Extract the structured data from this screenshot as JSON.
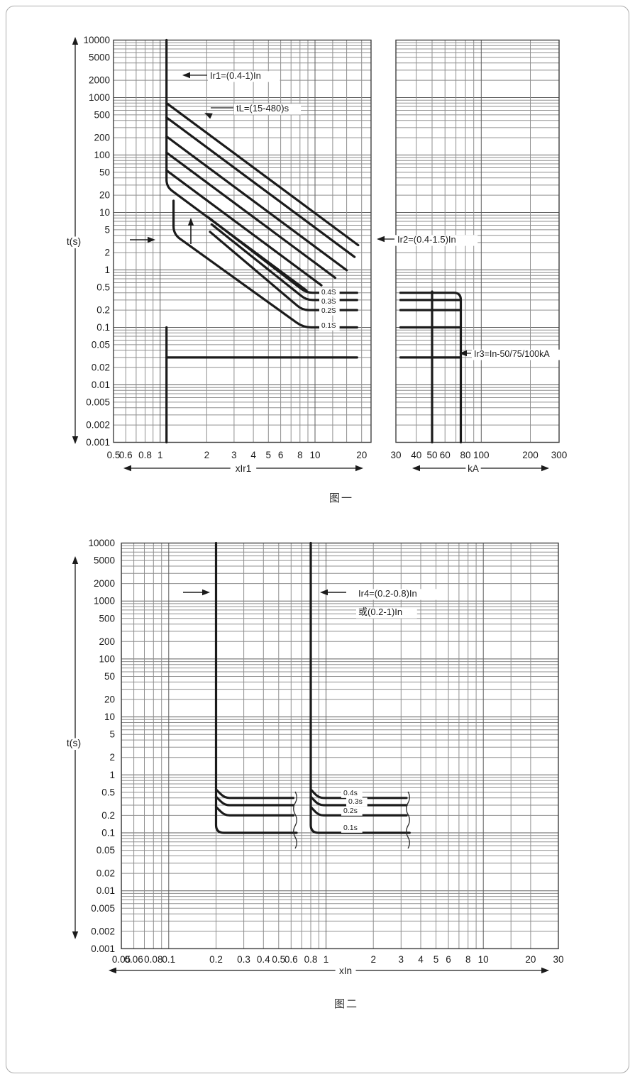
{
  "page": {
    "background": "#ffffff",
    "border_color": "#ababab"
  },
  "chart_data": [
    {
      "type": "line",
      "caption": "图一",
      "ylabel": "t(s)",
      "ylim": [
        0.001,
        10000
      ],
      "grid": true,
      "legend_position": "none",
      "y_ticks": [
        10000,
        5000,
        2000,
        1000,
        500,
        200,
        100,
        50,
        20,
        10,
        5,
        2,
        1,
        0.5,
        0.2,
        0.1,
        0.05,
        0.02,
        0.01,
        0.005,
        0.002,
        0.001
      ],
      "x_sections": [
        {
          "label": "xIr1",
          "lim": [
            0.5,
            23
          ],
          "ticks": [
            0.5,
            0.6,
            0.8,
            1,
            2,
            3,
            4,
            5,
            6,
            8,
            10,
            20
          ],
          "extra_grid": [
            13,
            16
          ]
        },
        {
          "label": "kA",
          "lim": [
            30,
            300
          ],
          "ticks": [
            30,
            40,
            50,
            60,
            80,
            100,
            200,
            300
          ],
          "extra_grid": []
        }
      ],
      "annotations": [
        "Ir1=(0.4-1)In",
        "tL=(15-480)s",
        "Ir2=(0.4-1.5)In",
        "Ir3=In-50/75/100kA"
      ],
      "delay_labels": [
        "0.4S",
        "0.3S",
        "0.2S",
        "0.1S"
      ],
      "series": [
        {
          "name": "ir1-pickup-long-delay",
          "sec": 0,
          "r": 10,
          "pts": [
            [
              1.1,
              10000
            ],
            [
              1.1,
              28
            ],
            [
              8.8,
              0.44
            ]
          ]
        },
        {
          "name": "tl-480s",
          "sec": 0,
          "pts": [
            [
              1.1,
              800
            ],
            [
              19,
              2.7
            ]
          ]
        },
        {
          "name": "tl-240s",
          "sec": 0,
          "pts": [
            [
              1.1,
              450
            ],
            [
              18,
              1.68
            ]
          ]
        },
        {
          "name": "tl-120s",
          "sec": 0,
          "pts": [
            [
              1.1,
              210
            ],
            [
              16,
              0.99
            ]
          ]
        },
        {
          "name": "tl-60s",
          "sec": 0,
          "pts": [
            [
              1.1,
              110
            ],
            [
              13.5,
              0.73
            ]
          ]
        },
        {
          "name": "tl-30s",
          "sec": 0,
          "pts": [
            [
              1.1,
              54
            ],
            [
              11,
              0.54
            ]
          ]
        },
        {
          "name": "ir2-pickup-0.1s",
          "sec": 0,
          "r": 11,
          "pts": [
            [
              1.22,
              16
            ],
            [
              1.22,
              4.2
            ],
            [
              8.4,
              0.1
            ],
            [
              18.7,
              0.1
            ]
          ]
        },
        {
          "name": "short-delay-0.4s",
          "sec": 0,
          "r": 9,
          "pts": [
            [
              2.05,
              8.2
            ],
            [
              8.8,
              0.4
            ],
            [
              18.7,
              0.4
            ]
          ]
        },
        {
          "name": "short-delay-0.3s",
          "sec": 0,
          "r": 9,
          "pts": [
            [
              2.15,
              6.2
            ],
            [
              8.8,
              0.3
            ],
            [
              18.7,
              0.3
            ]
          ]
        },
        {
          "name": "short-delay-0.2s",
          "sec": 0,
          "r": 9,
          "pts": [
            [
              2.1,
              4.6
            ],
            [
              8.3,
              0.2
            ],
            [
              18.7,
              0.2
            ]
          ]
        },
        {
          "name": "instantaneous-left",
          "sec": 0,
          "pts": [
            [
              1.1,
              0.03
            ],
            [
              18.7,
              0.03
            ]
          ]
        },
        {
          "name": "ir1-vertical-lower",
          "sec": 0,
          "pts": [
            [
              1.1,
              0.1
            ],
            [
              1.1,
              0.001
            ]
          ]
        },
        {
          "name": "ka-0.4s-75kA",
          "sec": 1,
          "r": 10,
          "pts": [
            [
              32,
              0.4
            ],
            [
              75,
              0.4
            ],
            [
              75,
              0.001
            ]
          ]
        },
        {
          "name": "ka-0.3s",
          "sec": 1,
          "pts": [
            [
              32,
              0.3
            ],
            [
              74,
              0.3
            ]
          ]
        },
        {
          "name": "ka-0.2s",
          "sec": 1,
          "pts": [
            [
              32,
              0.2
            ],
            [
              74,
              0.2
            ]
          ]
        },
        {
          "name": "ka-0.1s",
          "sec": 1,
          "pts": [
            [
              32,
              0.1
            ],
            [
              74,
              0.1
            ]
          ]
        },
        {
          "name": "ka-instantaneous",
          "sec": 1,
          "pts": [
            [
              32,
              0.03
            ],
            [
              74,
              0.03
            ]
          ]
        },
        {
          "name": "ka-50kA-vertical",
          "sec": 1,
          "pts": [
            [
              50,
              0.42
            ],
            [
              50,
              0.001
            ]
          ]
        }
      ]
    },
    {
      "type": "line",
      "caption": "图二",
      "ylabel": "t(s)",
      "xlabel": "xIn",
      "ylim": [
        0.001,
        10000
      ],
      "xlim": [
        0.05,
        30
      ],
      "grid": true,
      "legend_position": "none",
      "y_ticks": [
        10000,
        5000,
        2000,
        1000,
        500,
        200,
        100,
        50,
        20,
        10,
        5,
        2,
        1,
        0.5,
        0.2,
        0.1,
        0.05,
        0.02,
        0.01,
        0.005,
        0.002,
        0.001
      ],
      "x_ticks": [
        0.05,
        0.06,
        0.08,
        0.1,
        0.2,
        0.3,
        0.4,
        0.5,
        0.6,
        0.8,
        1,
        2,
        3,
        4,
        5,
        6,
        8,
        10,
        20,
        30
      ],
      "extra_grid": [
        15
      ],
      "annotations": [
        "Ir4=(0.2-0.8)In",
        "或(0.2-1)In"
      ],
      "delay_labels": [
        "0.4s",
        "0.3s",
        "0.2s",
        "0.1s"
      ],
      "series": [
        {
          "name": "ir4-min-0.2In-0.1s",
          "r": 11,
          "pts": [
            [
              0.2,
              10000
            ],
            [
              0.2,
              0.1
            ],
            [
              0.65,
              0.1
            ]
          ]
        },
        {
          "name": "ir4-min-0.4s",
          "r": 7,
          "pts": [
            [
              0.2,
              0.56
            ],
            [
              0.227,
              0.4
            ],
            [
              0.62,
              0.4
            ]
          ]
        },
        {
          "name": "ir4-min-0.3s",
          "r": 7,
          "pts": [
            [
              0.2,
              0.42
            ],
            [
              0.227,
              0.3
            ],
            [
              0.62,
              0.3
            ]
          ]
        },
        {
          "name": "ir4-min-0.2s",
          "r": 7,
          "pts": [
            [
              0.2,
              0.28
            ],
            [
              0.227,
              0.2
            ],
            [
              0.62,
              0.2
            ]
          ]
        },
        {
          "name": "ir4-max-0.8In-0.1s",
          "r": 11,
          "pts": [
            [
              0.8,
              10000
            ],
            [
              0.8,
              0.1
            ],
            [
              3.4,
              0.1
            ]
          ]
        },
        {
          "name": "ir4-max-0.4s",
          "r": 7,
          "pts": [
            [
              0.8,
              0.56
            ],
            [
              0.9,
              0.4
            ],
            [
              3.25,
              0.4
            ]
          ]
        },
        {
          "name": "ir4-max-0.3s",
          "r": 7,
          "pts": [
            [
              0.8,
              0.42
            ],
            [
              0.9,
              0.3
            ],
            [
              3.25,
              0.3
            ]
          ]
        },
        {
          "name": "ir4-max-0.2s",
          "r": 7,
          "pts": [
            [
              0.8,
              0.28
            ],
            [
              0.9,
              0.2
            ],
            [
              3.25,
              0.2
            ]
          ]
        }
      ]
    }
  ]
}
